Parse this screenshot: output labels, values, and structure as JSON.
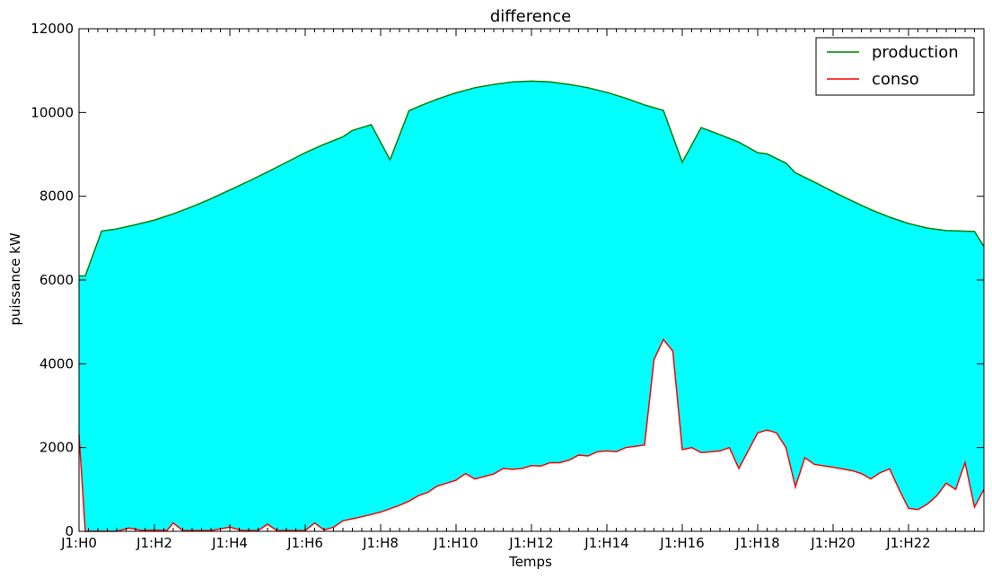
{
  "chart_data": {
    "type": "area",
    "title": "difference",
    "xlabel": "Temps",
    "ylabel": "puissance kW",
    "ylim": [
      0,
      12000
    ],
    "xlim": [
      0,
      24
    ],
    "yticks": [
      0,
      2000,
      4000,
      6000,
      8000,
      10000,
      12000
    ],
    "xticks": [
      {
        "value": 0,
        "label": "J1:H0"
      },
      {
        "value": 2,
        "label": "J1:H2"
      },
      {
        "value": 4,
        "label": "J1:H4"
      },
      {
        "value": 6,
        "label": "J1:H6"
      },
      {
        "value": 8,
        "label": "J1:H8"
      },
      {
        "value": 10,
        "label": "J1:H10"
      },
      {
        "value": 12,
        "label": "J1:H12"
      },
      {
        "value": 14,
        "label": "J1:H14"
      },
      {
        "value": 16,
        "label": "J1:H16"
      },
      {
        "value": 18,
        "label": "J1:H18"
      },
      {
        "value": 20,
        "label": "J1:H20"
      },
      {
        "value": 22,
        "label": "J1:H22"
      }
    ],
    "fill_color": "#00ffff",
    "grid": false,
    "legend_position": "top-right",
    "series": [
      {
        "name": "production",
        "color": "#008000",
        "points": [
          [
            0,
            6100
          ],
          [
            0.1667,
            6100
          ],
          [
            0.6,
            7170
          ],
          [
            1,
            7220
          ],
          [
            1.5,
            7320
          ],
          [
            2,
            7430
          ],
          [
            2.5,
            7580
          ],
          [
            3,
            7750
          ],
          [
            3.5,
            7940
          ],
          [
            4,
            8150
          ],
          [
            4.5,
            8360
          ],
          [
            5,
            8580
          ],
          [
            5.5,
            8810
          ],
          [
            6,
            9040
          ],
          [
            6.5,
            9240
          ],
          [
            7,
            9420
          ],
          [
            7.25,
            9570
          ],
          [
            7.75,
            9710
          ],
          [
            8.25,
            8870
          ],
          [
            8.75,
            10040
          ],
          [
            9,
            10140
          ],
          [
            9.5,
            10320
          ],
          [
            10,
            10470
          ],
          [
            10.5,
            10590
          ],
          [
            11,
            10670
          ],
          [
            11.5,
            10730
          ],
          [
            12,
            10750
          ],
          [
            12.5,
            10730
          ],
          [
            13,
            10670
          ],
          [
            13.5,
            10590
          ],
          [
            14,
            10480
          ],
          [
            14.5,
            10340
          ],
          [
            15,
            10180
          ],
          [
            15.5,
            10050
          ],
          [
            16,
            8810
          ],
          [
            16.5,
            9640
          ],
          [
            17,
            9470
          ],
          [
            17.5,
            9290
          ],
          [
            18,
            9040
          ],
          [
            18.25,
            9010
          ],
          [
            18.75,
            8790
          ],
          [
            19,
            8560
          ],
          [
            19.5,
            8340
          ],
          [
            20,
            8110
          ],
          [
            20.5,
            7890
          ],
          [
            21,
            7680
          ],
          [
            21.5,
            7500
          ],
          [
            22,
            7350
          ],
          [
            22.5,
            7240
          ],
          [
            23,
            7180
          ],
          [
            23.75,
            7160
          ],
          [
            24,
            6800
          ]
        ]
      },
      {
        "name": "conso",
        "color": "#ff0000",
        "points": [
          [
            0,
            2300
          ],
          [
            0.167,
            0
          ],
          [
            1,
            0
          ],
          [
            1.33,
            80
          ],
          [
            1.67,
            20
          ],
          [
            2,
            30
          ],
          [
            2.33,
            20
          ],
          [
            2.5,
            200
          ],
          [
            2.75,
            20
          ],
          [
            3,
            20
          ],
          [
            3.5,
            20
          ],
          [
            4,
            100
          ],
          [
            4.33,
            20
          ],
          [
            4.75,
            20
          ],
          [
            5,
            170
          ],
          [
            5.25,
            20
          ],
          [
            6,
            20
          ],
          [
            6.25,
            200
          ],
          [
            6.5,
            30
          ],
          [
            6.75,
            100
          ],
          [
            7,
            250
          ],
          [
            7.25,
            300
          ],
          [
            7.5,
            350
          ],
          [
            7.75,
            400
          ],
          [
            8,
            460
          ],
          [
            8.25,
            540
          ],
          [
            8.5,
            620
          ],
          [
            8.75,
            720
          ],
          [
            9,
            850
          ],
          [
            9.25,
            930
          ],
          [
            9.5,
            1080
          ],
          [
            9.75,
            1150
          ],
          [
            10,
            1220
          ],
          [
            10.25,
            1380
          ],
          [
            10.5,
            1250
          ],
          [
            10.75,
            1310
          ],
          [
            11,
            1370
          ],
          [
            11.25,
            1500
          ],
          [
            11.5,
            1480
          ],
          [
            11.75,
            1500
          ],
          [
            12,
            1570
          ],
          [
            12.25,
            1560
          ],
          [
            12.5,
            1640
          ],
          [
            12.75,
            1640
          ],
          [
            13,
            1700
          ],
          [
            13.25,
            1820
          ],
          [
            13.5,
            1800
          ],
          [
            13.75,
            1900
          ],
          [
            14,
            1920
          ],
          [
            14.25,
            1900
          ],
          [
            14.5,
            2000
          ],
          [
            14.75,
            2030
          ],
          [
            15,
            2060
          ],
          [
            15.25,
            4100
          ],
          [
            15.5,
            4580
          ],
          [
            15.75,
            4300
          ],
          [
            16,
            1950
          ],
          [
            16.25,
            2000
          ],
          [
            16.5,
            1880
          ],
          [
            16.75,
            1900
          ],
          [
            17,
            1920
          ],
          [
            17.25,
            2000
          ],
          [
            17.5,
            1500
          ],
          [
            18,
            2350
          ],
          [
            18.25,
            2420
          ],
          [
            18.5,
            2350
          ],
          [
            18.75,
            2000
          ],
          [
            19,
            1060
          ],
          [
            19.25,
            1760
          ],
          [
            19.5,
            1600
          ],
          [
            20,
            1530
          ],
          [
            20.5,
            1450
          ],
          [
            20.75,
            1380
          ],
          [
            21,
            1250
          ],
          [
            21.25,
            1400
          ],
          [
            21.5,
            1490
          ],
          [
            21.75,
            1000
          ],
          [
            22,
            550
          ],
          [
            22.25,
            520
          ],
          [
            22.5,
            650
          ],
          [
            22.75,
            850
          ],
          [
            23,
            1150
          ],
          [
            23.25,
            1000
          ],
          [
            23.5,
            1640
          ],
          [
            23.75,
            580
          ],
          [
            24,
            1000
          ]
        ]
      }
    ]
  }
}
